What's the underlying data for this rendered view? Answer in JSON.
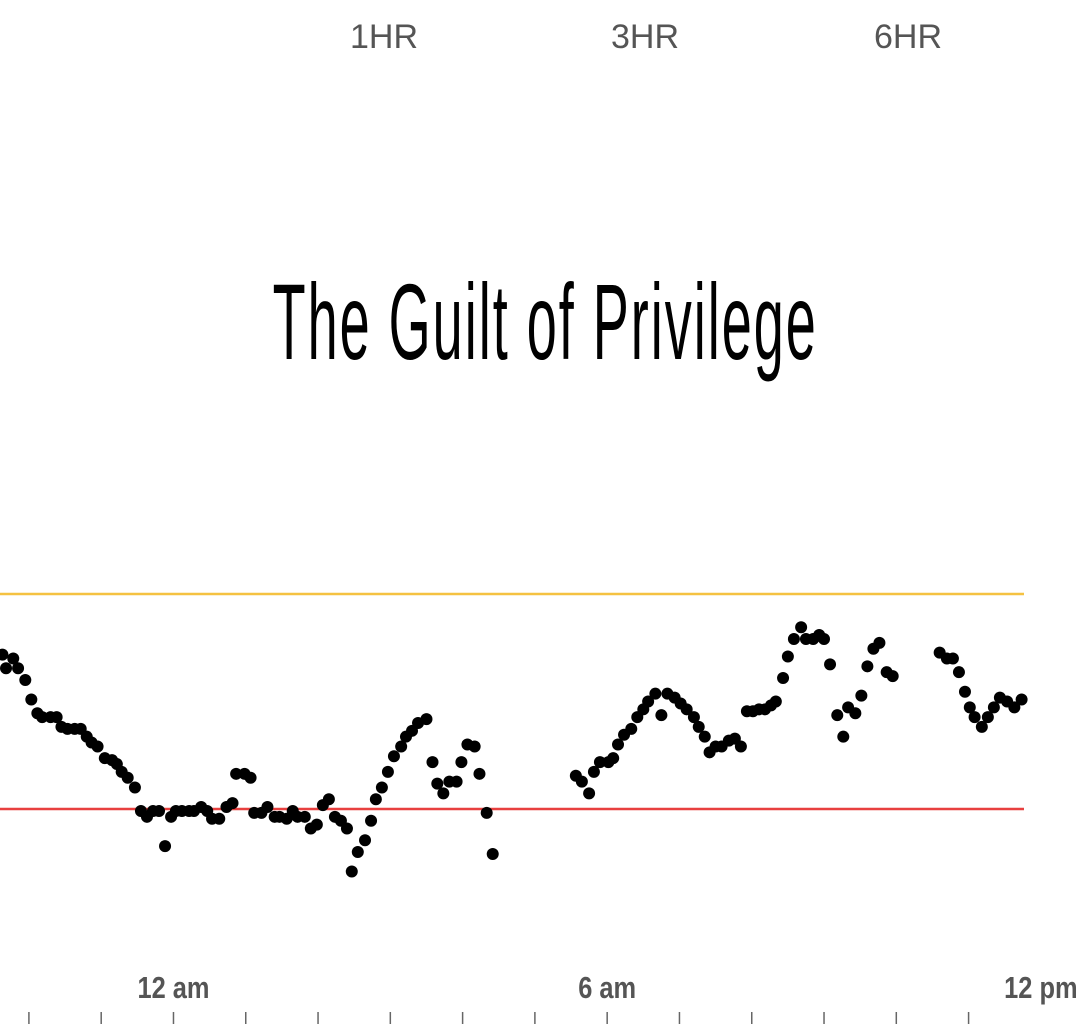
{
  "range_tabs": [
    {
      "label": "1HR"
    },
    {
      "label": "3HR"
    },
    {
      "label": "6HR"
    }
  ],
  "title": "The Guilt of Privilege",
  "colors": {
    "high_line": "#f5c242",
    "low_line": "#e8403f",
    "dots": "#000000",
    "axis_text": "#555555",
    "ticks": "#666666"
  },
  "chart_data": {
    "type": "scatter",
    "title": "The Guilt of Privilege",
    "xlabel": "",
    "ylabel": "",
    "x_units": "minutes from 12 am",
    "y_units": "mg/dL (estimated)",
    "xlim": [
      -144,
      706
    ],
    "thresholds": {
      "high": 180,
      "low": 70
    },
    "x_tick_labels": [
      {
        "label": "12 am",
        "x": 0
      },
      {
        "label": "6 am",
        "x": 360
      },
      {
        "label": "12 pm",
        "x": 720
      }
    ],
    "x_ticks": [
      -120,
      -60,
      0,
      60,
      120,
      180,
      240,
      300,
      360,
      420,
      480,
      540,
      600,
      660
    ],
    "grid": false,
    "points": [
      [
        -142,
        149
      ],
      [
        -139,
        142
      ],
      [
        -133,
        147
      ],
      [
        -129,
        142
      ],
      [
        -123,
        136
      ],
      [
        -118,
        126
      ],
      [
        -113,
        119
      ],
      [
        -109,
        117
      ],
      [
        -102,
        117
      ],
      [
        -97,
        117
      ],
      [
        -93,
        112
      ],
      [
        -88,
        111
      ],
      [
        -82,
        111
      ],
      [
        -77,
        111
      ],
      [
        -72,
        107
      ],
      [
        -68,
        104
      ],
      [
        -63,
        102
      ],
      [
        -57,
        96
      ],
      [
        -51,
        95
      ],
      [
        -47,
        93
      ],
      [
        -43,
        89
      ],
      [
        -38,
        86
      ],
      [
        -32,
        81
      ],
      [
        -27,
        69
      ],
      [
        -22,
        66
      ],
      [
        -17,
        69
      ],
      [
        -12,
        69
      ],
      [
        -7,
        51
      ],
      [
        -2,
        66
      ],
      [
        2,
        69
      ],
      [
        7,
        69
      ],
      [
        13,
        69
      ],
      [
        17,
        69
      ],
      [
        23,
        71
      ],
      [
        28,
        69
      ],
      [
        32,
        65
      ],
      [
        38,
        65
      ],
      [
        44,
        71
      ],
      [
        49,
        73
      ],
      [
        52,
        88
      ],
      [
        59,
        88
      ],
      [
        64,
        86
      ],
      [
        67,
        68
      ],
      [
        73,
        68
      ],
      [
        78,
        71
      ],
      [
        84,
        66
      ],
      [
        88,
        66
      ],
      [
        94,
        65
      ],
      [
        99,
        69
      ],
      [
        103,
        66
      ],
      [
        109,
        66
      ],
      [
        114,
        60
      ],
      [
        119,
        62
      ],
      [
        124,
        72
      ],
      [
        129,
        75
      ],
      [
        134,
        66
      ],
      [
        139,
        64
      ],
      [
        144,
        60
      ],
      [
        148,
        38
      ],
      [
        153,
        48
      ],
      [
        159,
        54
      ],
      [
        164,
        64
      ],
      [
        168,
        75
      ],
      [
        173,
        81
      ],
      [
        178,
        89
      ],
      [
        183,
        97
      ],
      [
        189,
        102
      ],
      [
        193,
        107
      ],
      [
        198,
        110
      ],
      [
        203,
        114
      ],
      [
        210,
        116
      ],
      [
        215,
        94
      ],
      [
        219,
        83
      ],
      [
        224,
        78
      ],
      [
        229,
        84
      ],
      [
        235,
        84
      ],
      [
        239,
        94
      ],
      [
        244,
        103
      ],
      [
        250,
        102
      ],
      [
        254,
        88
      ],
      [
        260,
        68
      ],
      [
        265,
        47
      ],
      [
        334,
        87
      ],
      [
        339,
        84
      ],
      [
        345,
        78
      ],
      [
        349,
        89
      ],
      [
        354,
        94
      ],
      [
        361,
        94
      ],
      [
        365,
        96
      ],
      [
        369,
        103
      ],
      [
        374,
        108
      ],
      [
        380,
        111
      ],
      [
        385,
        117
      ],
      [
        390,
        121
      ],
      [
        394,
        125
      ],
      [
        400,
        129
      ],
      [
        405,
        118
      ],
      [
        410,
        129
      ],
      [
        416,
        127
      ],
      [
        421,
        124
      ],
      [
        426,
        121
      ],
      [
        432,
        117
      ],
      [
        436,
        112
      ],
      [
        441,
        107
      ],
      [
        445,
        99
      ],
      [
        450,
        102
      ],
      [
        455,
        102
      ],
      [
        461,
        105
      ],
      [
        466,
        106
      ],
      [
        471,
        102
      ],
      [
        476,
        120
      ],
      [
        481,
        120
      ],
      [
        486,
        121
      ],
      [
        491,
        121
      ],
      [
        496,
        123
      ],
      [
        500,
        125
      ],
      [
        506,
        137
      ],
      [
        510,
        148
      ],
      [
        515,
        157
      ],
      [
        521,
        163
      ],
      [
        525,
        157
      ],
      [
        531,
        157
      ],
      [
        536,
        159
      ],
      [
        540,
        157
      ],
      [
        545,
        144
      ],
      [
        551,
        118
      ],
      [
        556,
        107
      ],
      [
        560,
        122
      ],
      [
        566,
        119
      ],
      [
        571,
        128
      ],
      [
        576,
        143
      ],
      [
        581,
        152
      ],
      [
        586,
        155
      ],
      [
        592,
        140
      ],
      [
        597,
        138
      ],
      [
        636,
        150
      ],
      [
        642,
        147
      ],
      [
        647,
        147
      ],
      [
        652,
        140
      ],
      [
        657,
        130
      ],
      [
        661,
        122
      ],
      [
        665,
        117
      ],
      [
        671,
        112
      ],
      [
        676,
        117
      ],
      [
        681,
        122
      ],
      [
        686,
        127
      ],
      [
        692,
        125
      ],
      [
        698,
        122
      ],
      [
        704,
        126
      ]
    ]
  }
}
